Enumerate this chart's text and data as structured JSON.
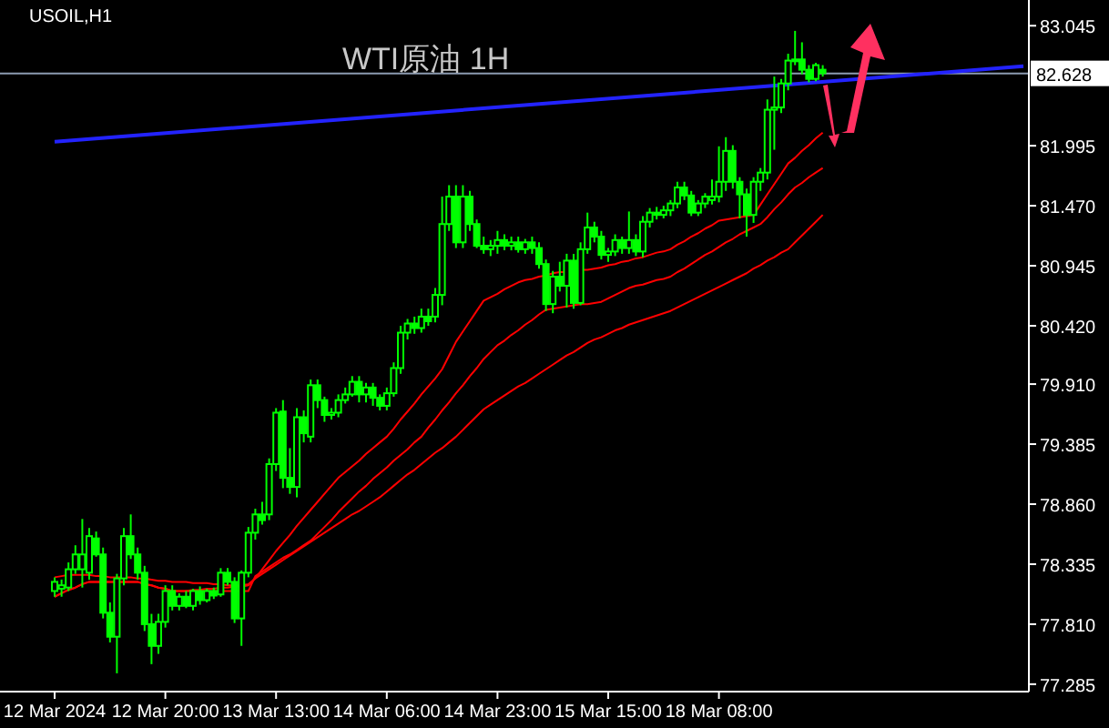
{
  "chart_data": {
    "type": "candlestick",
    "title": "USOIL,H1",
    "annotations": [
      "WTI原油 1H"
    ],
    "color": "#00ff00",
    "categories": [
      "12 Mar 2024",
      null,
      null,
      null,
      null,
      null,
      null,
      null,
      null,
      null,
      null,
      null,
      null,
      null,
      null,
      null,
      "12 Mar 20:00",
      null,
      null,
      null,
      null,
      null,
      null,
      null,
      null,
      null,
      null,
      null,
      null,
      null,
      null,
      null,
      "13 Mar 13:00",
      null,
      null,
      null,
      null,
      null,
      null,
      null,
      null,
      null,
      null,
      null,
      null,
      null,
      null,
      null,
      "14 Mar 06:00",
      null,
      null,
      null,
      null,
      null,
      null,
      null,
      null,
      null,
      null,
      null,
      null,
      null,
      null,
      null,
      "14 Mar 23:00",
      null,
      null,
      null,
      null,
      null,
      null,
      null,
      null,
      null,
      null,
      null,
      null,
      null,
      null,
      null,
      "15 Mar 15:00",
      null,
      null,
      null,
      null,
      null,
      null,
      null,
      null,
      null,
      null,
      null,
      null,
      null,
      null,
      null,
      "18 Mar 08:00",
      null,
      null,
      null,
      null,
      null,
      null,
      null,
      null,
      null,
      null,
      null,
      null,
      null,
      null,
      null,
      null,
      null,
      null,
      null,
      null,
      null,
      null,
      null,
      null,
      null,
      null,
      null,
      null,
      null,
      null,
      null,
      null,
      null,
      null,
      null,
      null,
      null,
      null,
      null,
      null,
      null,
      null,
      null,
      null
    ],
    "ohlc": [
      [
        78.1,
        78.22,
        78.05,
        78.18
      ],
      [
        78.12,
        78.2,
        78.05,
        78.15
      ],
      [
        78.13,
        78.35,
        78.1,
        78.29
      ],
      [
        78.29,
        78.5,
        78.25,
        78.42
      ],
      [
        78.29,
        78.73,
        78.13,
        78.42
      ],
      [
        78.26,
        78.65,
        78.2,
        78.58
      ],
      [
        78.56,
        78.62,
        78.4,
        78.42
      ],
      [
        78.42,
        78.48,
        77.86,
        77.91
      ],
      [
        77.91,
        78.0,
        77.65,
        77.7
      ],
      [
        77.7,
        78.25,
        77.38,
        78.21
      ],
      [
        78.21,
        78.65,
        78.15,
        78.58
      ],
      [
        78.58,
        78.77,
        78.38,
        78.42
      ],
      [
        78.42,
        78.48,
        78.2,
        78.26
      ],
      [
        78.26,
        78.32,
        77.75,
        77.81
      ],
      [
        77.81,
        77.9,
        77.46,
        77.62
      ],
      [
        77.62,
        77.9,
        77.55,
        77.83
      ],
      [
        77.83,
        78.15,
        77.78,
        78.1
      ],
      [
        78.1,
        78.15,
        77.93,
        77.97
      ],
      [
        77.97,
        78.08,
        77.93,
        78.05
      ],
      [
        78.05,
        78.1,
        77.95,
        77.97
      ],
      [
        77.97,
        78.12,
        77.93,
        78.1
      ],
      [
        78.1,
        78.14,
        77.98,
        78.02
      ],
      [
        78.02,
        78.12,
        78.0,
        78.1
      ],
      [
        78.1,
        78.13,
        78.03,
        78.06
      ],
      [
        78.07,
        78.3,
        78.05,
        78.26
      ],
      [
        78.26,
        78.3,
        78.15,
        78.18
      ],
      [
        78.18,
        78.22,
        77.82,
        77.86
      ],
      [
        77.86,
        78.28,
        77.62,
        78.26
      ],
      [
        78.26,
        78.66,
        78.22,
        78.61
      ],
      [
        78.61,
        78.82,
        78.55,
        78.77
      ],
      [
        78.77,
        78.88,
        78.68,
        78.72
      ],
      [
        78.77,
        79.26,
        78.72,
        79.21
      ],
      [
        79.21,
        79.7,
        79.15,
        79.66
      ],
      [
        79.67,
        79.77,
        79.0,
        79.09
      ],
      [
        79.09,
        79.35,
        78.95,
        79.01
      ],
      [
        79.01,
        79.7,
        78.92,
        79.62
      ],
      [
        79.62,
        79.68,
        79.4,
        79.48
      ],
      [
        79.45,
        79.95,
        79.4,
        79.9
      ],
      [
        79.9,
        79.95,
        79.7,
        79.77
      ],
      [
        79.77,
        79.8,
        79.58,
        79.64
      ],
      [
        79.64,
        79.7,
        79.6,
        79.66
      ],
      [
        79.66,
        79.82,
        79.62,
        79.77
      ],
      [
        79.77,
        79.88,
        79.74,
        79.82
      ],
      [
        79.82,
        79.98,
        79.8,
        79.93
      ],
      [
        79.93,
        79.98,
        79.75,
        79.82
      ],
      [
        79.82,
        79.92,
        79.75,
        79.88
      ],
      [
        79.88,
        79.92,
        79.72,
        79.79
      ],
      [
        79.79,
        79.82,
        79.68,
        79.72
      ],
      [
        79.72,
        79.88,
        79.68,
        79.83
      ],
      [
        79.83,
        80.1,
        79.8,
        80.05
      ],
      [
        80.05,
        80.42,
        80.0,
        80.36
      ],
      [
        80.36,
        80.48,
        80.3,
        80.44
      ],
      [
        80.44,
        80.5,
        80.35,
        80.4
      ],
      [
        80.4,
        80.57,
        80.36,
        80.5
      ],
      [
        80.5,
        80.57,
        80.42,
        80.46
      ],
      [
        80.5,
        80.75,
        80.45,
        80.69
      ],
      [
        80.69,
        81.55,
        80.6,
        81.31
      ],
      [
        81.31,
        81.65,
        81.25,
        81.55
      ],
      [
        81.55,
        81.65,
        81.1,
        81.15
      ],
      [
        81.15,
        81.65,
        81.1,
        81.55
      ],
      [
        81.55,
        81.6,
        81.25,
        81.31
      ],
      [
        81.31,
        81.35,
        81.1,
        81.12
      ],
      [
        81.12,
        81.2,
        81.05,
        81.09
      ],
      [
        81.09,
        81.17,
        81.03,
        81.12
      ],
      [
        81.12,
        81.25,
        81.05,
        81.17
      ],
      [
        81.17,
        81.22,
        81.08,
        81.12
      ],
      [
        81.12,
        81.2,
        81.08,
        81.15
      ],
      [
        81.15,
        81.2,
        81.06,
        81.09
      ],
      [
        81.09,
        81.18,
        81.05,
        81.15
      ],
      [
        81.15,
        81.2,
        81.05,
        81.1
      ],
      [
        81.1,
        81.15,
        80.92,
        80.96
      ],
      [
        80.96,
        81.0,
        80.55,
        80.61
      ],
      [
        80.61,
        80.9,
        80.53,
        80.85
      ],
      [
        80.85,
        80.98,
        80.72,
        80.77
      ],
      [
        80.77,
        81.05,
        80.58,
        80.99
      ],
      [
        80.99,
        81.05,
        80.57,
        80.62
      ],
      [
        80.62,
        81.15,
        80.6,
        81.09
      ],
      [
        81.09,
        81.41,
        81.05,
        81.28
      ],
      [
        81.28,
        81.33,
        81.15,
        81.2
      ],
      [
        81.2,
        81.25,
        81.0,
        81.04
      ],
      [
        81.04,
        81.1,
        80.98,
        81.07
      ],
      [
        81.07,
        81.22,
        81.03,
        81.17
      ],
      [
        81.17,
        81.2,
        81.05,
        81.1
      ],
      [
        81.1,
        81.42,
        81.05,
        81.17
      ],
      [
        81.17,
        81.22,
        81.03,
        81.07
      ],
      [
        81.07,
        81.38,
        81.02,
        81.33
      ],
      [
        81.33,
        81.45,
        81.28,
        81.41
      ],
      [
        81.41,
        81.46,
        81.35,
        81.39
      ],
      [
        81.39,
        81.47,
        81.36,
        81.43
      ],
      [
        81.43,
        81.52,
        81.38,
        81.49
      ],
      [
        81.49,
        81.68,
        81.45,
        81.63
      ],
      [
        81.63,
        81.68,
        81.52,
        81.56
      ],
      [
        81.56,
        81.6,
        81.38,
        81.41
      ],
      [
        81.41,
        81.52,
        81.38,
        81.49
      ],
      [
        81.49,
        81.58,
        81.45,
        81.55
      ],
      [
        81.52,
        81.7,
        81.48,
        81.55
      ],
      [
        81.55,
        81.99,
        81.5,
        81.68
      ],
      [
        81.68,
        82.07,
        81.6,
        81.95
      ],
      [
        81.95,
        82.0,
        81.62,
        81.68
      ],
      [
        81.68,
        81.72,
        81.36,
        81.57
      ],
      [
        81.57,
        81.62,
        81.2,
        81.39
      ],
      [
        81.39,
        81.72,
        81.32,
        81.68
      ],
      [
        81.68,
        81.8,
        81.6,
        81.76
      ],
      [
        81.76,
        82.4,
        81.7,
        82.31
      ],
      [
        82.31,
        82.6,
        81.96,
        82.33
      ],
      [
        82.33,
        82.58,
        82.28,
        82.54
      ],
      [
        82.54,
        82.8,
        82.48,
        82.74
      ],
      [
        82.74,
        83.0,
        82.7,
        82.75
      ],
      [
        82.75,
        82.9,
        82.62,
        82.66
      ],
      [
        82.66,
        82.7,
        82.55,
        82.58
      ],
      [
        82.58,
        82.72,
        82.56,
        82.7
      ],
      [
        82.66,
        82.7,
        82.6,
        82.63
      ],
      null,
      null,
      null,
      null,
      null,
      null,
      null,
      null,
      null,
      null,
      null,
      null,
      null,
      null,
      null,
      null,
      null,
      null,
      null,
      null,
      null,
      null,
      null,
      null,
      null,
      null,
      null,
      null,
      null
    ],
    "series": [
      {
        "type": "line",
        "color": "#ff0000",
        "values": [
          78.22,
          78.23,
          78.24,
          78.24,
          78.24,
          78.24,
          78.23,
          78.23,
          78.22,
          78.22,
          78.22,
          78.22,
          78.21,
          78.21,
          78.2,
          78.19,
          78.19,
          78.18,
          78.18,
          78.18,
          78.17,
          78.17,
          78.17,
          78.16,
          78.16,
          78.15,
          78.15,
          78.15,
          78.16,
          78.21,
          78.29,
          78.37,
          78.45,
          78.52,
          78.59,
          78.67,
          78.74,
          78.81,
          78.88,
          78.95,
          79.02,
          79.09,
          79.14,
          79.19,
          79.24,
          79.3,
          79.35,
          79.4,
          79.45,
          79.52,
          79.6,
          79.67,
          79.74,
          79.82,
          79.89,
          79.96,
          80.04,
          80.16,
          80.28,
          80.37,
          80.46,
          80.55,
          80.64,
          80.67,
          80.7,
          80.74,
          80.77,
          80.8,
          80.82,
          80.83,
          80.85,
          80.86,
          80.88,
          80.89,
          80.89,
          null,
          80.91,
          80.91,
          80.92,
          80.93,
          80.95,
          80.96,
          80.98,
          80.99,
          81.01,
          81.02,
          81.04,
          81.06,
          81.07,
          81.09,
          81.13,
          81.16,
          81.2,
          81.23,
          81.27,
          81.3,
          81.34,
          81.35,
          81.36,
          81.37,
          81.38,
          81.39,
          81.48,
          81.57,
          81.66,
          81.75,
          81.84,
          81.89,
          81.95,
          82.0,
          82.06,
          82.11,
          null,
          null,
          null,
          null,
          null,
          null,
          null,
          null,
          null,
          null,
          null,
          null,
          null,
          null,
          null,
          null,
          null,
          null,
          null,
          null,
          null,
          null,
          null,
          null,
          null,
          null,
          null,
          null,
          null
        ]
      },
      {
        "type": "line",
        "color": "#ff0000",
        "values": [
          78.05,
          78.08,
          78.11,
          78.13,
          78.16,
          78.18,
          78.18,
          78.18,
          78.18,
          78.18,
          78.18,
          78.18,
          78.18,
          78.16,
          78.15,
          78.13,
          78.12,
          78.1,
          78.1,
          78.1,
          78.1,
          78.1,
          78.1,
          78.1,
          78.1,
          78.1,
          78.1,
          78.1,
          78.1,
          78.23,
          78.27,
          78.31,
          78.35,
          78.39,
          78.42,
          78.46,
          78.5,
          78.54,
          78.6,
          78.66,
          78.72,
          78.79,
          78.85,
          78.91,
          78.97,
          79.02,
          79.08,
          79.13,
          79.18,
          79.24,
          79.29,
          79.34,
          79.4,
          79.45,
          79.53,
          79.6,
          79.68,
          79.75,
          79.83,
          79.9,
          79.98,
          80.05,
          80.13,
          80.19,
          80.25,
          80.29,
          80.34,
          80.38,
          80.43,
          80.47,
          80.52,
          80.56,
          80.57,
          80.58,
          80.59,
          80.6,
          80.61,
          80.61,
          80.62,
          80.63,
          80.66,
          80.69,
          80.72,
          80.75,
          80.77,
          80.78,
          80.8,
          80.82,
          80.83,
          80.85,
          80.89,
          80.92,
          80.96,
          81.0,
          81.04,
          81.07,
          81.11,
          81.15,
          81.18,
          81.22,
          81.25,
          81.28,
          81.31,
          81.37,
          81.44,
          81.5,
          81.57,
          81.63,
          81.67,
          81.72,
          81.76,
          81.8,
          null,
          null,
          null,
          null,
          null,
          null,
          null,
          null,
          null,
          null,
          null,
          null,
          null,
          null,
          null,
          null,
          null,
          null,
          null,
          null,
          null,
          null,
          null,
          null,
          null,
          null,
          null,
          null,
          null
        ]
      },
      {
        "type": "line",
        "color": "#ff0000",
        "values": [
          78.05,
          78.08,
          78.11,
          78.13,
          78.16,
          78.18,
          78.18,
          78.18,
          78.18,
          78.18,
          78.18,
          78.18,
          78.18,
          78.16,
          78.15,
          78.13,
          78.12,
          78.1,
          78.1,
          78.1,
          78.11,
          78.11,
          78.12,
          78.12,
          78.13,
          78.13,
          78.14,
          78.14,
          78.15,
          78.21,
          78.25,
          78.29,
          78.33,
          78.37,
          78.41,
          78.45,
          78.49,
          78.53,
          78.57,
          78.61,
          78.65,
          78.69,
          78.73,
          78.77,
          78.8,
          78.84,
          78.88,
          78.92,
          78.97,
          79.02,
          79.07,
          79.12,
          79.16,
          79.21,
          79.26,
          79.31,
          79.35,
          79.4,
          79.45,
          79.51,
          79.57,
          79.63,
          79.69,
          79.73,
          79.77,
          79.81,
          79.85,
          79.89,
          79.92,
          79.96,
          80.0,
          80.04,
          80.08,
          80.12,
          80.16,
          80.19,
          80.23,
          80.27,
          80.3,
          80.32,
          80.35,
          80.38,
          80.4,
          80.43,
          80.45,
          80.47,
          80.49,
          80.51,
          80.53,
          80.55,
          80.58,
          80.61,
          80.64,
          80.67,
          80.7,
          80.73,
          80.76,
          80.79,
          80.82,
          80.85,
          80.88,
          80.92,
          80.95,
          80.99,
          81.02,
          81.06,
          81.09,
          81.15,
          81.21,
          81.27,
          81.33,
          81.39,
          null,
          null,
          null,
          null,
          null,
          null,
          null,
          null,
          null,
          null,
          null,
          null,
          null,
          null,
          null,
          null,
          null,
          null,
          null,
          null,
          null,
          null,
          null,
          null,
          null,
          null,
          null,
          null,
          null
        ]
      },
      {
        "type": "line",
        "color": "#2323ff",
        "values": [
          82.03,
          null,
          null,
          null,
          null,
          null,
          null,
          null,
          null,
          null,
          null,
          null,
          null,
          null,
          null,
          null,
          null,
          null,
          null,
          null,
          null,
          null,
          null,
          null,
          null,
          null,
          null,
          null,
          null,
          null,
          null,
          null,
          null,
          null,
          null,
          null,
          null,
          null,
          null,
          null,
          null,
          null,
          null,
          null,
          null,
          null,
          null,
          null,
          null,
          null,
          null,
          null,
          null,
          null,
          null,
          null,
          null,
          null,
          null,
          null,
          null,
          null,
          null,
          null,
          null,
          null,
          null,
          null,
          null,
          null,
          null,
          null,
          null,
          null,
          null,
          null,
          null,
          null,
          null,
          null,
          null,
          null,
          null,
          null,
          null,
          null,
          null,
          null,
          null,
          null,
          null,
          null,
          null,
          null,
          null,
          null,
          null,
          null,
          null,
          null,
          null,
          null,
          null,
          null,
          null,
          null,
          null,
          null,
          null,
          null,
          null,
          null,
          null,
          null,
          null,
          null,
          null,
          null,
          null,
          null,
          null,
          null,
          null,
          null,
          null,
          null,
          null,
          null,
          null,
          null,
          null,
          null,
          null,
          null,
          null,
          null,
          null,
          null,
          null,
          null,
          82.69
        ]
      }
    ],
    "ref_lines": [
      {
        "axis": "y",
        "value": 82.628,
        "label": "82.628",
        "color": "#8c9bb0"
      }
    ],
    "ylim": [
      77.22,
      83.27
    ],
    "yticks": [
      {
        "value": 83.045,
        "label": "83.045"
      },
      {
        "value": 81.995,
        "label": "81.995"
      },
      {
        "value": 81.47,
        "label": "81.470"
      },
      {
        "value": 80.945,
        "label": "80.945"
      },
      {
        "value": 80.42,
        "label": "80.420"
      },
      {
        "value": 79.91,
        "label": "79.910"
      },
      {
        "value": 79.385,
        "label": "79.385"
      },
      {
        "value": 78.86,
        "label": "78.860"
      },
      {
        "value": 78.335,
        "label": "78.335"
      },
      {
        "value": 77.81,
        "label": "77.810"
      },
      {
        "value": 77.285,
        "label": "77.285"
      }
    ]
  }
}
